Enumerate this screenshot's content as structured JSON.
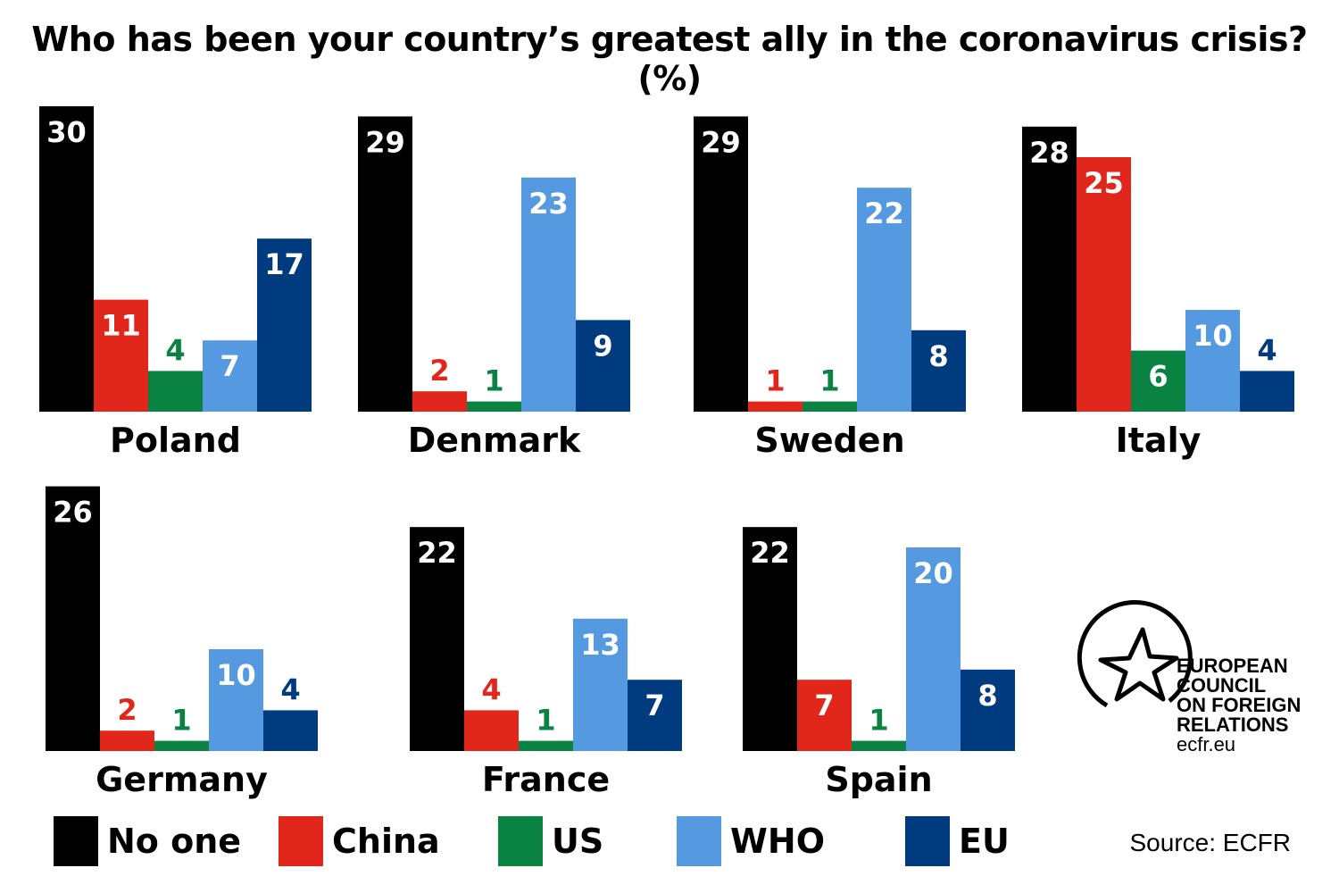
{
  "chart_data": {
    "type": "bar",
    "title": "Who has been your country’s greatest ally in the coronavirus crisis? (%)",
    "series_names": [
      "No one",
      "China",
      "US",
      "WHO",
      "EU"
    ],
    "colors": {
      "No one": "#000000",
      "China": "#e1261c",
      "US": "#0a8241",
      "WHO": "#5599e0",
      "EU": "#003b80"
    },
    "panels": [
      {
        "country": "Poland",
        "values": [
          30,
          11,
          4,
          7,
          17
        ]
      },
      {
        "country": "Denmark",
        "values": [
          29,
          2,
          1,
          23,
          9
        ]
      },
      {
        "country": "Sweden",
        "values": [
          29,
          1,
          1,
          22,
          8
        ]
      },
      {
        "country": "Italy",
        "values": [
          28,
          25,
          6,
          10,
          4
        ]
      },
      {
        "country": "Germany",
        "values": [
          26,
          2,
          1,
          10,
          4
        ]
      },
      {
        "country": "France",
        "values": [
          22,
          4,
          1,
          13,
          7
        ]
      },
      {
        "country": "Spain",
        "values": [
          22,
          7,
          1,
          20,
          8
        ]
      }
    ]
  },
  "legend": [
    "No one",
    "China",
    "US",
    "WHO",
    "EU"
  ],
  "source": "Source: ECFR",
  "logo": {
    "lines": [
      "EUROPEAN",
      "COUNCIL",
      "ON FOREIGN",
      "RELATIONS"
    ],
    "url": "ecfr.eu"
  }
}
